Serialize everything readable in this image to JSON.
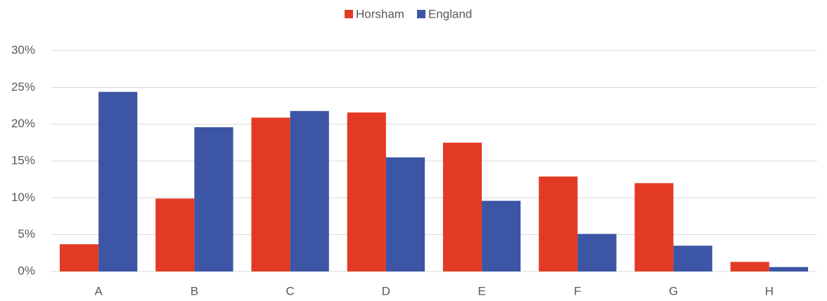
{
  "chart_data": {
    "type": "bar",
    "categories": [
      "A",
      "B",
      "C",
      "D",
      "E",
      "F",
      "G",
      "H"
    ],
    "series": [
      {
        "name": "Horsham",
        "color": "#e33a26",
        "values": [
          3.7,
          9.9,
          20.9,
          21.6,
          17.5,
          12.9,
          12.0,
          1.3
        ]
      },
      {
        "name": "England",
        "color": "#3c55a5",
        "values": [
          24.4,
          19.6,
          21.8,
          15.5,
          9.6,
          5.1,
          3.5,
          0.6
        ]
      }
    ],
    "ylim": [
      0,
      30
    ],
    "yticks": [
      {
        "value": 0,
        "label": "0%"
      },
      {
        "value": 5,
        "label": "5%"
      },
      {
        "value": 10,
        "label": "10%"
      },
      {
        "value": 15,
        "label": "15%"
      },
      {
        "value": 20,
        "label": "20%"
      },
      {
        "value": 25,
        "label": "25%"
      },
      {
        "value": 30,
        "label": "30%"
      }
    ],
    "grid": true,
    "legend": "top"
  }
}
